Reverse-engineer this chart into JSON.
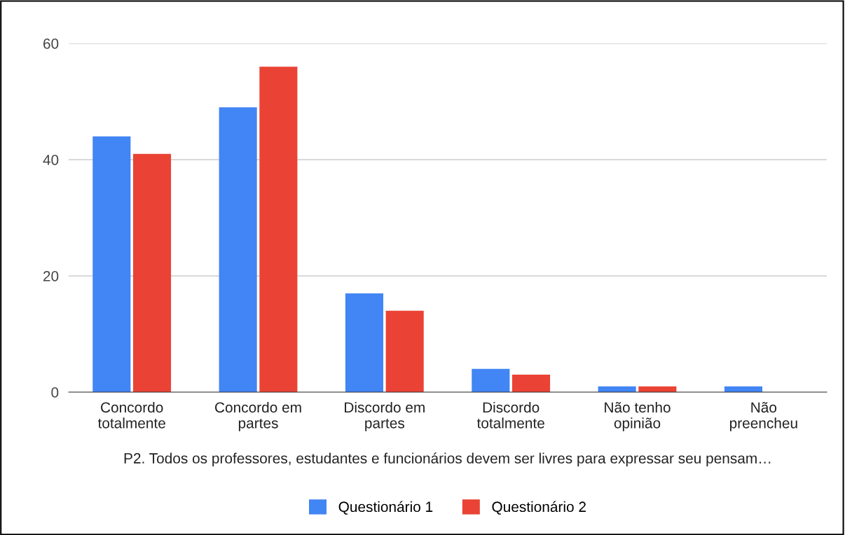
{
  "chart_data": {
    "type": "bar",
    "categories": [
      "Concordo\ntotalmente",
      "Concordo em\npartes",
      "Discordo em\npartes",
      "Discordo\ntotalmente",
      "Não tenho\nopinião",
      "Não\npreencheu"
    ],
    "series": [
      {
        "name": "Questionário 1",
        "color": "#4285f4",
        "values": [
          44,
          49,
          17,
          4,
          1,
          1
        ]
      },
      {
        "name": "Questionário 2",
        "color": "#ea4335",
        "values": [
          41,
          56,
          14,
          3,
          1,
          0
        ]
      }
    ],
    "xlabel": "P2. Todos os professores, estudantes e funcionários devem ser livres para expressar seu pensam…",
    "ylim": [
      0,
      60
    ],
    "yticks": [
      0,
      20,
      40,
      60
    ],
    "grid": "y",
    "legend": "bottom"
  }
}
